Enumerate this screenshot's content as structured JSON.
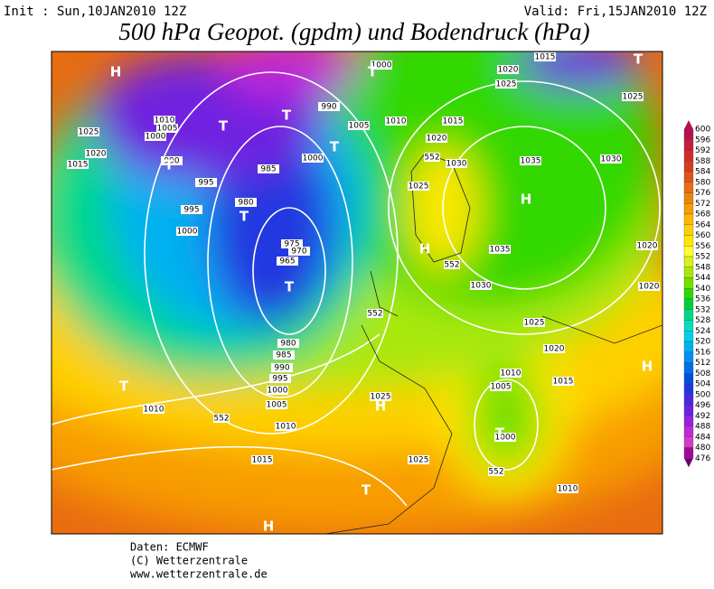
{
  "header": {
    "init": "Init : Sun,10JAN2010 12Z",
    "valid": "Valid: Fri,15JAN2010 12Z",
    "title": "500 hPa Geopot. (gpdm) und Bodendruck (hPa)"
  },
  "isobar_labels": [
    "1000",
    "1020",
    "1015",
    "1025",
    "1025",
    "1010",
    "1005",
    "1000",
    "1025",
    "1020",
    "1015",
    "990",
    "995",
    "995",
    "1000",
    "980",
    "985",
    "975",
    "970",
    "965",
    "990",
    "1005",
    "1010",
    "1015",
    "1020",
    "1000",
    "1030",
    "1035",
    "1030",
    "1025",
    "1035",
    "1030",
    "1025",
    "1020",
    "1020",
    "1020",
    "1015",
    "1010",
    "1005",
    "1000",
    "980",
    "985",
    "990",
    "995",
    "1000",
    "1005",
    "1010",
    "1010",
    "1015",
    "1025",
    "1025",
    "1010"
  ],
  "geopotential_labels": [
    "552",
    "552",
    "552",
    "552",
    "552"
  ],
  "pressure_centers": [
    "H",
    "T",
    "T",
    "T",
    "T",
    "T",
    "T",
    "T",
    "T",
    "H",
    "H",
    "H",
    "T",
    "T",
    "H",
    "T",
    "H"
  ],
  "colorbar": {
    "labels": [
      600,
      596,
      592,
      588,
      584,
      580,
      576,
      572,
      568,
      564,
      560,
      556,
      552,
      548,
      544,
      540,
      536,
      532,
      528,
      524,
      520,
      516,
      512,
      508,
      504,
      500,
      496,
      492,
      488,
      484,
      480,
      476
    ],
    "colors": [
      "#b8104c",
      "#c81c3c",
      "#d02c2c",
      "#d83c20",
      "#e05418",
      "#e86c10",
      "#f08408",
      "#f89c00",
      "#ffb800",
      "#ffd000",
      "#ffe800",
      "#ffff30",
      "#d8f018",
      "#a8e808",
      "#70e000",
      "#30d800",
      "#00d040",
      "#00d888",
      "#00e0c0",
      "#00d0e8",
      "#00b0f0",
      "#0090f0",
      "#0070e8",
      "#0050e0",
      "#2038e0",
      "#4828e0",
      "#7020e0",
      "#9820e0",
      "#c028d8",
      "#d838c8",
      "#a00898",
      "#700070"
    ]
  },
  "footer": [
    "Daten: ECMWF",
    "(C) Wetterzentrale",
    "www.wetterzentrale.de"
  ]
}
